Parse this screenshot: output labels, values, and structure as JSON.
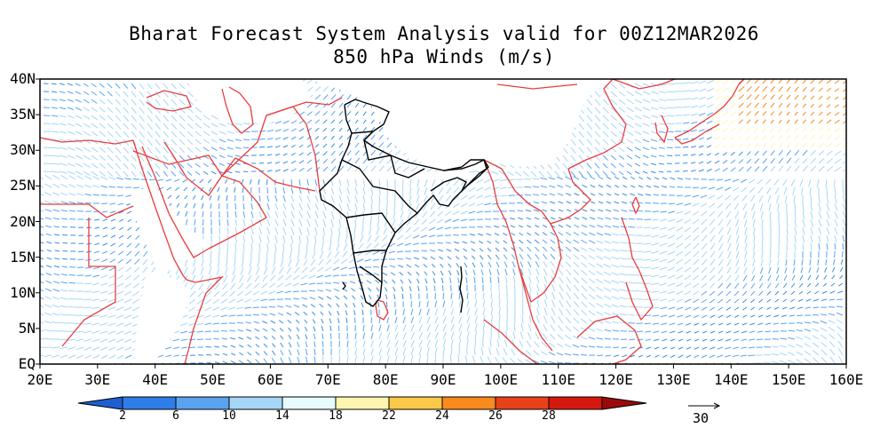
{
  "title": {
    "line1": "Bharat Forecast System Analysis valid for 00Z12MAR2026",
    "line2": "850 hPa Winds (m/s)"
  },
  "map": {
    "lat_labels": [
      "40N",
      "35N",
      "30N",
      "25N",
      "20N",
      "15N",
      "10N",
      "5N",
      "EQ"
    ],
    "lon_labels": [
      "20E",
      "30E",
      "40E",
      "50E",
      "60E",
      "70E",
      "80E",
      "90E",
      "100E",
      "110E",
      "120E",
      "130E",
      "140E",
      "150E",
      "160E"
    ],
    "lat_range": [
      0,
      40
    ],
    "lon_range": [
      20,
      160
    ],
    "coastline_color": "#e83c3c",
    "india_border_color": "#000000",
    "vector_color": "#3a8fe0"
  },
  "colorbar": {
    "levels": [
      "2",
      "6",
      "10",
      "14",
      "18",
      "22",
      "24",
      "26",
      "28"
    ],
    "colors": [
      "#1e5fd0",
      "#2f7de8",
      "#5aa3f0",
      "#a6d6f7",
      "#e6fcfc",
      "#fef6b0",
      "#fcc84a",
      "#f88a1e",
      "#e8421a",
      "#d41a0e",
      "#9a0a0a"
    ]
  },
  "reference_vector": {
    "label": "30"
  }
}
